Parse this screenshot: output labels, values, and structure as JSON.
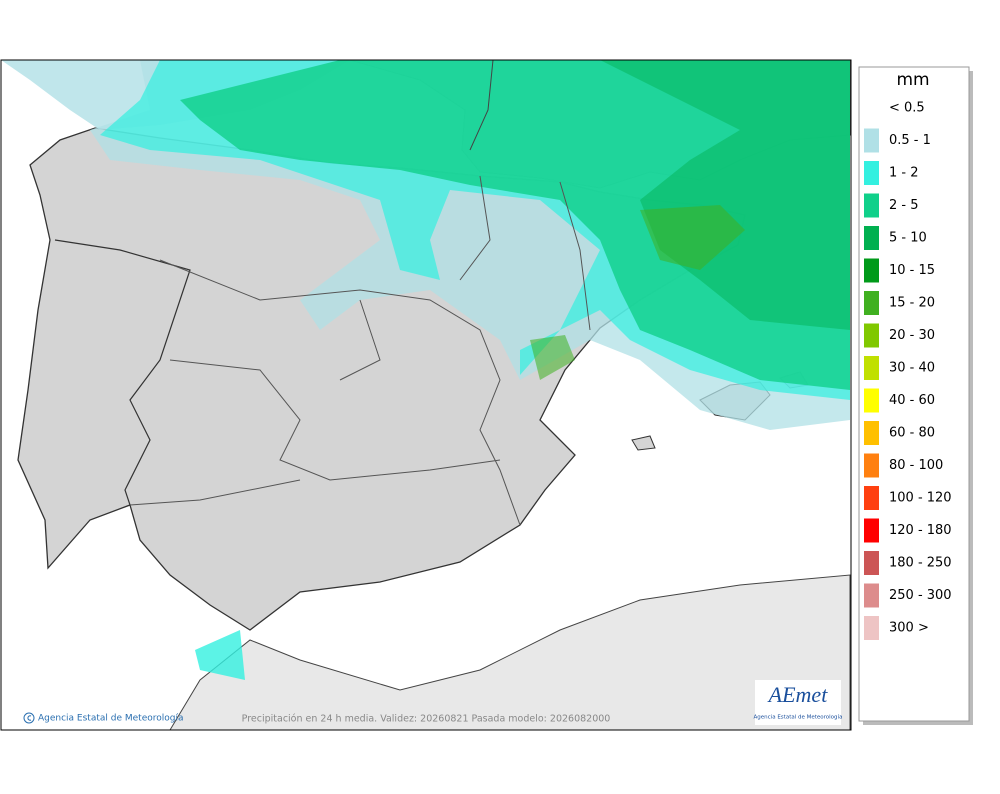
{
  "legend": {
    "title": "mm",
    "items": [
      {
        "label": "< 0.5"
      },
      {
        "label": "0.5 - 1",
        "color": "#b0e0e6"
      },
      {
        "label": "1 - 2",
        "color": "#33f0e0"
      },
      {
        "label": "2 - 5",
        "color": "#10d08a"
      },
      {
        "label": "5 - 10",
        "color": "#00b050"
      },
      {
        "label": "10 - 15",
        "color": "#009a1a"
      },
      {
        "label": "15 - 20",
        "color": "#40b020"
      },
      {
        "label": "20 - 30",
        "color": "#80c800"
      },
      {
        "label": "30 - 40",
        "color": "#c0e000"
      },
      {
        "label": "40 - 60",
        "color": "#ffff00"
      },
      {
        "label": "60 - 80",
        "color": "#ffc000"
      },
      {
        "label": "80 - 100",
        "color": "#ff8010"
      },
      {
        "label": "100 - 120",
        "color": "#ff4010"
      },
      {
        "label": "120 - 180",
        "color": "#ff0000"
      },
      {
        "label": "180 - 250",
        "color": "#cc5555"
      },
      {
        "label": "250 - 300",
        "color": "#dd8c8c"
      },
      {
        "label": "300 >",
        "color": "#eec4c4"
      }
    ]
  },
  "credit": "Agencia Estatal de Meteorología",
  "footer": "Precipitación en 24 h media. Validez: 20260821 Pasada modelo: 2026082000",
  "logo": {
    "text": "AEmet",
    "subtitle": "Agencia Estatal de Meteorología"
  }
}
